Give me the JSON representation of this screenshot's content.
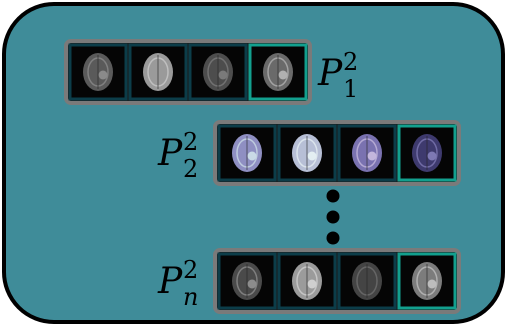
{
  "panel": {
    "colors": {
      "background": "#3f8c99",
      "border": "#000000",
      "strip_frame": "#7a7a7a",
      "strip_fill": "#1a1a1a",
      "modality_frame_default": "#0c3d49",
      "modality_frame_last": "#12a08e"
    }
  },
  "strips": [
    {
      "label_base": "P",
      "label_sub": "1",
      "label_sup": "2",
      "label_side": "right",
      "tiles": [
        {
          "brain_tone": "#5a5a5a",
          "detail_tone": "#8a8a8a",
          "lesion": true
        },
        {
          "brain_tone": "#9a9a9a",
          "detail_tone": "#c8c8c8",
          "lesion": false
        },
        {
          "brain_tone": "#4d4d4d",
          "detail_tone": "#7a7a7a",
          "lesion": true
        },
        {
          "brain_tone": "#6a6a6a",
          "detail_tone": "#b0b0b0",
          "lesion": true
        }
      ]
    },
    {
      "label_base": "P",
      "label_sub": "2",
      "label_sup": "2",
      "label_side": "left",
      "tiles": [
        {
          "brain_tone": "#8f8fc2",
          "detail_tone": "#c9d9e6",
          "lesion": true
        },
        {
          "brain_tone": "#b7bfd6",
          "detail_tone": "#e3eef2",
          "lesion": true
        },
        {
          "brain_tone": "#7a72b0",
          "detail_tone": "#c3b6dc",
          "lesion": true
        },
        {
          "brain_tone": "#3e3a6e",
          "detail_tone": "#7d78b3",
          "lesion": true
        }
      ]
    },
    {
      "label_base": "P",
      "label_sub": "n",
      "label_sup": "2",
      "label_side": "left",
      "tiles": [
        {
          "brain_tone": "#4a4a4a",
          "detail_tone": "#8c8c8c",
          "lesion": true
        },
        {
          "brain_tone": "#9b9b9b",
          "detail_tone": "#cfcfcf",
          "lesion": true
        },
        {
          "brain_tone": "#444444",
          "detail_tone": "#6e6e6e",
          "lesion": false
        },
        {
          "brain_tone": "#7c7c7c",
          "detail_tone": "#bdbdbd",
          "lesion": true
        }
      ]
    }
  ],
  "ellipsis": {
    "count": 3,
    "color": "#000000"
  }
}
